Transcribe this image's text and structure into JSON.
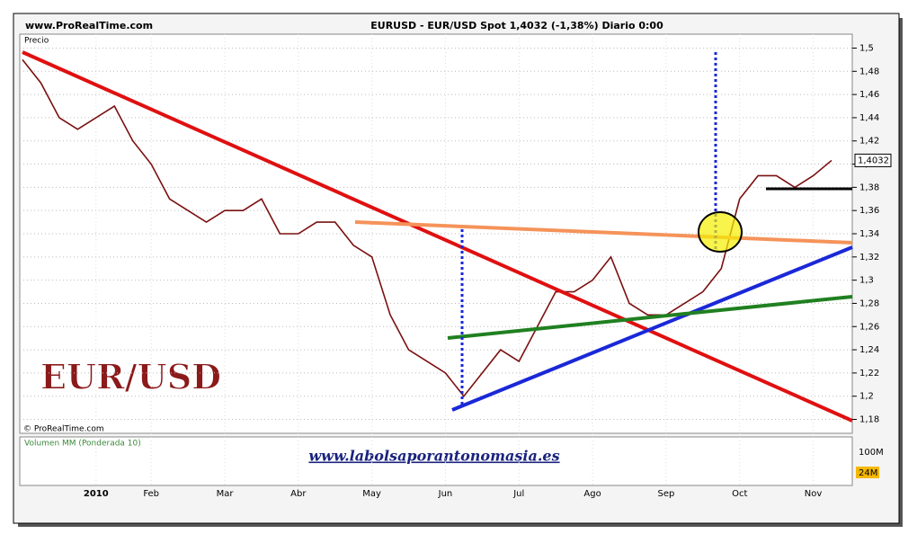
{
  "chart_data": {
    "type": "line",
    "header_left": "www.ProRealTime.com",
    "title": "EURUSD - EUR/USD Spot    1,4032 (-1,38%)   Diario  0:00",
    "panel_label": "Precio",
    "copyright": "© ProRealTime.com",
    "watermark": "EUR/USD",
    "website": "www.labolsaporantonomasia.es",
    "volume_title": "Volumen MM (Ponderada 10)",
    "volume_tick": "100M",
    "volume_last": "24M",
    "color": "#7a1010",
    "categories": [
      null,
      null,
      null,
      null,
      "2010",
      null,
      null,
      "Feb",
      null,
      null,
      null,
      "Mar",
      null,
      null,
      null,
      "Abr",
      null,
      null,
      null,
      "May",
      null,
      null,
      null,
      "Jun",
      null,
      null,
      null,
      "Jul",
      null,
      null,
      null,
      "Ago",
      null,
      null,
      null,
      "Sep",
      null,
      null,
      null,
      "Oct",
      null,
      null,
      null,
      "Nov",
      null
    ],
    "values": [
      1.49,
      1.47,
      1.44,
      1.43,
      1.44,
      1.45,
      1.42,
      1.4,
      1.37,
      1.36,
      1.35,
      1.36,
      1.36,
      1.37,
      1.34,
      1.34,
      1.35,
      1.35,
      1.33,
      1.32,
      1.27,
      1.24,
      1.23,
      1.22,
      1.2,
      1.22,
      1.24,
      1.23,
      1.26,
      1.29,
      1.29,
      1.3,
      1.32,
      1.28,
      1.27,
      1.27,
      1.28,
      1.29,
      1.31,
      1.37,
      1.39,
      1.39,
      1.38,
      1.39,
      1.4032
    ],
    "last_value": {
      "value": 1.4032,
      "label": "1,4032"
    },
    "ylim": [
      1.168,
      1.512
    ],
    "yticks": [
      {
        "value": 1.18,
        "label": "1,18"
      },
      {
        "value": 1.2,
        "label": "1,2"
      },
      {
        "value": 1.22,
        "label": "1,22"
      },
      {
        "value": 1.24,
        "label": "1,24"
      },
      {
        "value": 1.26,
        "label": "1,26"
      },
      {
        "value": 1.28,
        "label": "1,28"
      },
      {
        "value": 1.3,
        "label": "1,3"
      },
      {
        "value": 1.32,
        "label": "1,32"
      },
      {
        "value": 1.34,
        "label": "1,34"
      },
      {
        "value": 1.36,
        "label": "1,36"
      },
      {
        "value": 1.38,
        "label": "1,38"
      },
      {
        "value": 1.4,
        "label": "1,4"
      },
      {
        "value": 1.42,
        "label": "1,42"
      },
      {
        "value": 1.44,
        "label": "1,44"
      },
      {
        "value": 1.46,
        "label": "1,46"
      },
      {
        "value": 1.48,
        "label": "1,48"
      },
      {
        "value": 1.5,
        "label": "1,5"
      }
    ],
    "grid": true
  }
}
